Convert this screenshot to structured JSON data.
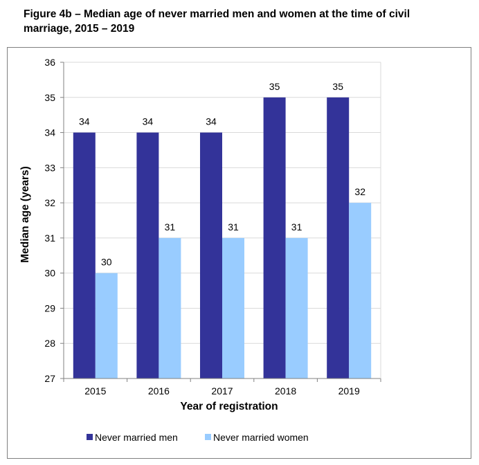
{
  "title": "Figure 4b – Median age of never married men and women at the time of civil marriage, 2015 – 2019",
  "title_line1": "Figure 4b – Median age of never married men and women at the time of civil",
  "title_line2": "marriage, 2015 – 2019",
  "colors": {
    "men": "#333399",
    "women": "#99ccff",
    "grid": "#d9d9d9",
    "axis": "#808080"
  },
  "chart_data": {
    "type": "bar",
    "title": "",
    "xlabel": "Year of registration",
    "ylabel": "Median age (years)",
    "categories": [
      "2015",
      "2016",
      "2017",
      "2018",
      "2019"
    ],
    "series": [
      {
        "name": "Never married men",
        "values": [
          34,
          34,
          34,
          35,
          35
        ]
      },
      {
        "name": "Never married women",
        "values": [
          30,
          31,
          31,
          31,
          32
        ]
      }
    ],
    "ylim": [
      27,
      36
    ],
    "yticks": [
      27,
      28,
      29,
      30,
      31,
      32,
      33,
      34,
      35,
      36
    ],
    "grid": true,
    "legend": "bottom"
  }
}
